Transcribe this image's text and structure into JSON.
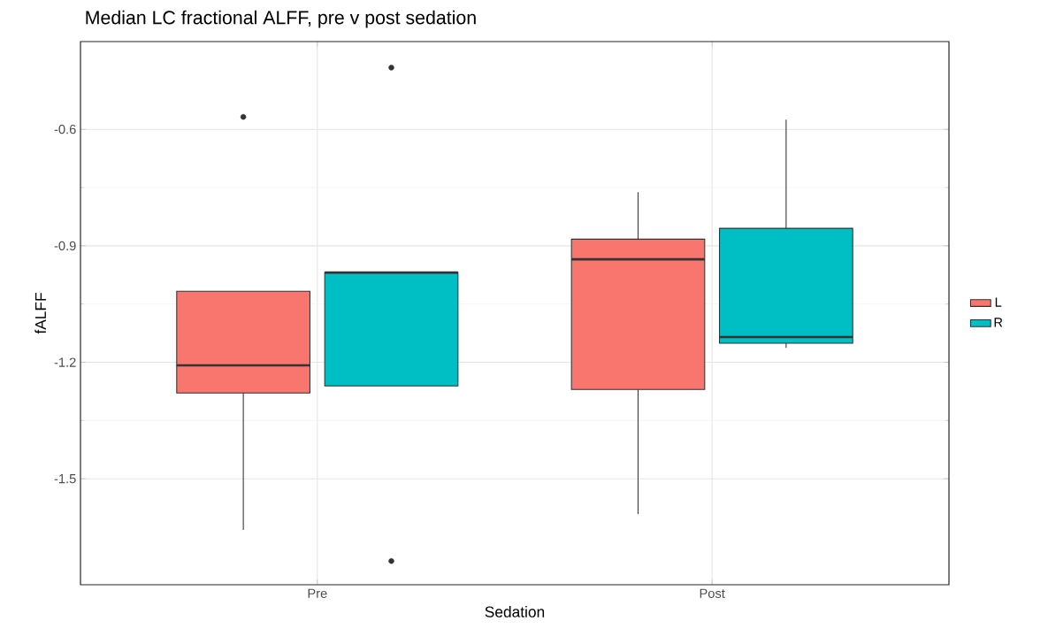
{
  "chart_data": {
    "type": "box",
    "title": "Median LC fractional ALFF, pre v post sedation",
    "xlabel": "Sedation",
    "ylabel": "fALFF",
    "categories": [
      "Pre",
      "Post"
    ],
    "series": [
      {
        "name": "L",
        "color": "#f8766d",
        "boxes": [
          {
            "low": -1.632,
            "q1": -1.279,
            "median": -1.208,
            "q3": -1.017,
            "high": -1.017,
            "outliers": [
              -0.568
            ]
          },
          {
            "low": -1.591,
            "q1": -1.27,
            "median": -0.935,
            "q3": -0.883,
            "high": -0.762
          }
        ]
      },
      {
        "name": "R",
        "color": "#00bfc4",
        "boxes": [
          {
            "low": -1.261,
            "q1": -1.261,
            "median": -0.969,
            "q3": -0.969,
            "high": -0.969,
            "outliers": [
              -0.441,
              -1.712
            ]
          },
          {
            "low": -1.163,
            "q1": -1.151,
            "median": -1.135,
            "q3": -0.855,
            "high": -0.575
          }
        ]
      }
    ],
    "ylim": [
      -1.773,
      -0.374
    ],
    "yticks": [
      -1.5,
      -1.2,
      -0.9,
      -0.6
    ],
    "grid": true,
    "legend": "right"
  }
}
